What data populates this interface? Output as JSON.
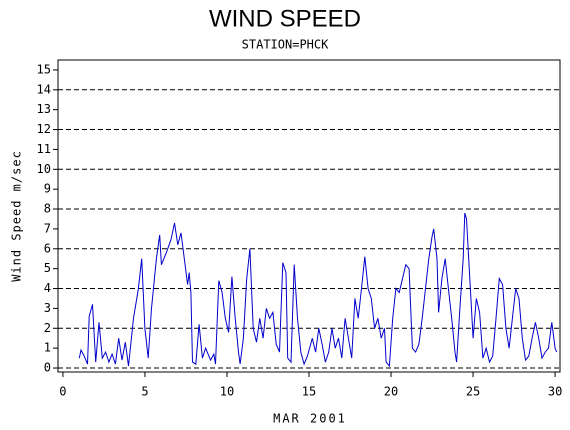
{
  "chart_data": {
    "type": "line",
    "title": "WIND SPEED",
    "subtitle": "STATION=PHCK",
    "x_label": "MAR 2001",
    "y_label": "Wind Speed m/sec",
    "xlim": [
      -0.3,
      30.3
    ],
    "xticks": [
      0,
      5,
      10,
      15,
      20,
      25,
      30
    ],
    "ylim": [
      -0.2,
      15.5
    ],
    "yticks": [
      0,
      1,
      2,
      3,
      4,
      5,
      6,
      7,
      8,
      9,
      10,
      11,
      12,
      13,
      14,
      15
    ],
    "grid": true,
    "grid_style": "dashed",
    "x": [
      1.0,
      1.1,
      1.3,
      1.5,
      1.6,
      1.8,
      2.0,
      2.2,
      2.4,
      2.6,
      2.8,
      3.0,
      3.2,
      3.4,
      3.6,
      3.8,
      4.0,
      4.3,
      4.6,
      4.8,
      5.0,
      5.2,
      5.4,
      5.7,
      5.9,
      6.0,
      6.3,
      6.6,
      6.8,
      7.0,
      7.2,
      7.4,
      7.6,
      7.7,
      7.8,
      7.9,
      8.1,
      8.3,
      8.5,
      8.7,
      9.0,
      9.2,
      9.3,
      9.5,
      9.7,
      9.9,
      10.1,
      10.3,
      10.5,
      10.7,
      10.8,
      11.0,
      11.2,
      11.4,
      11.6,
      11.8,
      12.0,
      12.2,
      12.4,
      12.6,
      12.8,
      13.0,
      13.2,
      13.4,
      13.6,
      13.7,
      13.9,
      14.1,
      14.3,
      14.5,
      14.7,
      14.9,
      15.2,
      15.4,
      15.6,
      15.8,
      16.0,
      16.2,
      16.4,
      16.6,
      16.8,
      17.0,
      17.2,
      17.4,
      17.6,
      17.8,
      18.0,
      18.2,
      18.4,
      18.6,
      18.8,
      19.0,
      19.2,
      19.4,
      19.6,
      19.7,
      19.9,
      20.1,
      20.3,
      20.5,
      20.7,
      20.9,
      21.1,
      21.2,
      21.3,
      21.5,
      21.7,
      21.9,
      22.1,
      22.3,
      22.5,
      22.6,
      22.8,
      22.9,
      23.1,
      23.3,
      23.5,
      23.7,
      23.9,
      24.0,
      24.2,
      24.4,
      24.5,
      24.6,
      24.8,
      25.0,
      25.2,
      25.4,
      25.6,
      25.8,
      26.0,
      26.2,
      26.4,
      26.6,
      26.8,
      27.0,
      27.2,
      27.4,
      27.6,
      27.8,
      28.0,
      28.2,
      28.4,
      28.6,
      28.8,
      29.0,
      29.2,
      29.4,
      29.6,
      29.8,
      30.0,
      30.1
    ],
    "series": [
      {
        "name": "Wind Speed",
        "color": "#0000cc",
        "values": [
          0.5,
          0.9,
          0.6,
          0.2,
          2.6,
          3.2,
          0.3,
          2.3,
          0.5,
          0.8,
          0.3,
          0.7,
          0.2,
          1.5,
          0.4,
          1.3,
          0.1,
          2.5,
          4.0,
          5.5,
          2.0,
          0.5,
          3.0,
          5.5,
          6.7,
          5.2,
          5.8,
          6.5,
          7.3,
          6.2,
          6.8,
          5.5,
          4.2,
          4.8,
          3.8,
          0.3,
          0.2,
          2.2,
          0.5,
          1.0,
          0.4,
          0.7,
          0.2,
          4.4,
          3.8,
          2.5,
          1.8,
          4.6,
          2.5,
          0.8,
          0.2,
          1.5,
          4.5,
          6.0,
          2.0,
          1.3,
          2.5,
          1.5,
          3.0,
          2.5,
          2.8,
          1.2,
          0.8,
          5.3,
          4.8,
          0.5,
          0.3,
          5.2,
          2.5,
          0.8,
          0.2,
          0.6,
          1.5,
          0.8,
          2.0,
          1.2,
          0.3,
          0.8,
          2.0,
          1.0,
          1.5,
          0.5,
          2.5,
          1.5,
          0.5,
          3.5,
          2.5,
          4.0,
          5.6,
          4.0,
          3.5,
          2.0,
          2.5,
          1.5,
          2.0,
          0.3,
          0.1,
          2.5,
          4.0,
          3.8,
          4.5,
          5.2,
          5.0,
          3.0,
          1.0,
          0.8,
          1.2,
          2.5,
          4.0,
          5.5,
          6.6,
          7.0,
          5.5,
          2.8,
          4.5,
          5.5,
          4.0,
          2.5,
          0.8,
          0.3,
          3.0,
          5.5,
          7.8,
          7.5,
          4.5,
          1.5,
          3.5,
          2.8,
          0.5,
          1.0,
          0.3,
          0.6,
          2.5,
          4.5,
          4.2,
          2.0,
          1.0,
          2.5,
          4.0,
          3.5,
          1.5,
          0.4,
          0.6,
          1.5,
          2.3,
          1.5,
          0.5,
          0.8,
          1.0,
          2.3,
          1.0,
          0.8
        ]
      }
    ]
  }
}
